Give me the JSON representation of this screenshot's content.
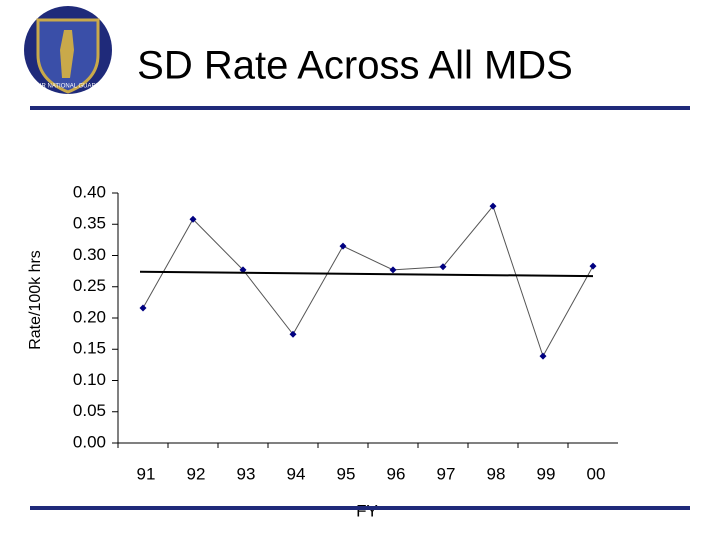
{
  "logo_text": "AIR NATIONAL GUARD",
  "chart_data": {
    "type": "line",
    "title": "SD Rate Across All MDS",
    "x_label": "FY",
    "y_label": "Rate/100k hrs",
    "categories": [
      "91",
      "92",
      "93",
      "94",
      "95",
      "96",
      "97",
      "98",
      "99",
      "00"
    ],
    "series": [
      {
        "name": "SD Rate",
        "color": "#000080",
        "values": [
          0.216,
          0.358,
          0.277,
          0.174,
          0.315,
          0.277,
          0.282,
          0.379,
          0.139,
          0.283
        ]
      }
    ],
    "trend": {
      "color": "#000000",
      "start": 0.274,
      "end": 0.267
    },
    "ylim": [
      0,
      0.4
    ],
    "yticks": [
      {
        "value": 0,
        "label": "0.00"
      },
      {
        "value": 0.05,
        "label": "0.05"
      },
      {
        "value": 0.1,
        "label": "0.10"
      },
      {
        "value": 0.15,
        "label": "0.15"
      },
      {
        "value": 0.2,
        "label": "0.20"
      },
      {
        "value": 0.25,
        "label": "0.25"
      },
      {
        "value": 0.3,
        "label": "0.30"
      },
      {
        "value": 0.35,
        "label": "0.35"
      },
      {
        "value": 0.4,
        "label": "0.40"
      }
    ],
    "grid": false
  }
}
